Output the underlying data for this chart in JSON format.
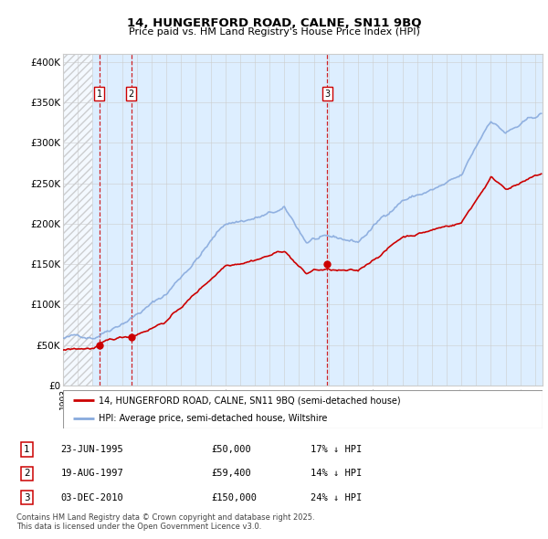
{
  "title": "14, HUNGERFORD ROAD, CALNE, SN11 9BQ",
  "subtitle": "Price paid vs. HM Land Registry's House Price Index (HPI)",
  "sales": [
    {
      "date": 1995.47,
      "price": 50000,
      "label": "1"
    },
    {
      "date": 1997.63,
      "price": 59400,
      "label": "2"
    },
    {
      "date": 2010.92,
      "price": 150000,
      "label": "3"
    }
  ],
  "sale_table": [
    {
      "num": "1",
      "date": "23-JUN-1995",
      "price": "£50,000",
      "info": "17% ↓ HPI"
    },
    {
      "num": "2",
      "date": "19-AUG-1997",
      "price": "£59,400",
      "info": "14% ↓ HPI"
    },
    {
      "num": "3",
      "date": "03-DEC-2010",
      "price": "£150,000",
      "info": "24% ↓ HPI"
    }
  ],
  "legend_line1": "14, HUNGERFORD ROAD, CALNE, SN11 9BQ (semi-detached house)",
  "legend_line2": "HPI: Average price, semi-detached house, Wiltshire",
  "footer": "Contains HM Land Registry data © Crown copyright and database right 2025.\nThis data is licensed under the Open Government Licence v3.0.",
  "ylim": [
    0,
    410000
  ],
  "yticks": [
    0,
    50000,
    100000,
    150000,
    200000,
    250000,
    300000,
    350000,
    400000
  ],
  "ytick_labels": [
    "£0",
    "£50K",
    "£100K",
    "£150K",
    "£200K",
    "£250K",
    "£300K",
    "£350K",
    "£400K"
  ],
  "xmin": 1993.0,
  "xmax": 2025.5,
  "price_line_color": "#cc0000",
  "hpi_line_color": "#88aadd",
  "dot_color": "#cc0000",
  "vline_color": "#cc0000",
  "grid_color": "#cccccc",
  "hatch_color": "#bbbbbb",
  "bg_color": "#ddeeff",
  "plot_bg": "#ffffff"
}
